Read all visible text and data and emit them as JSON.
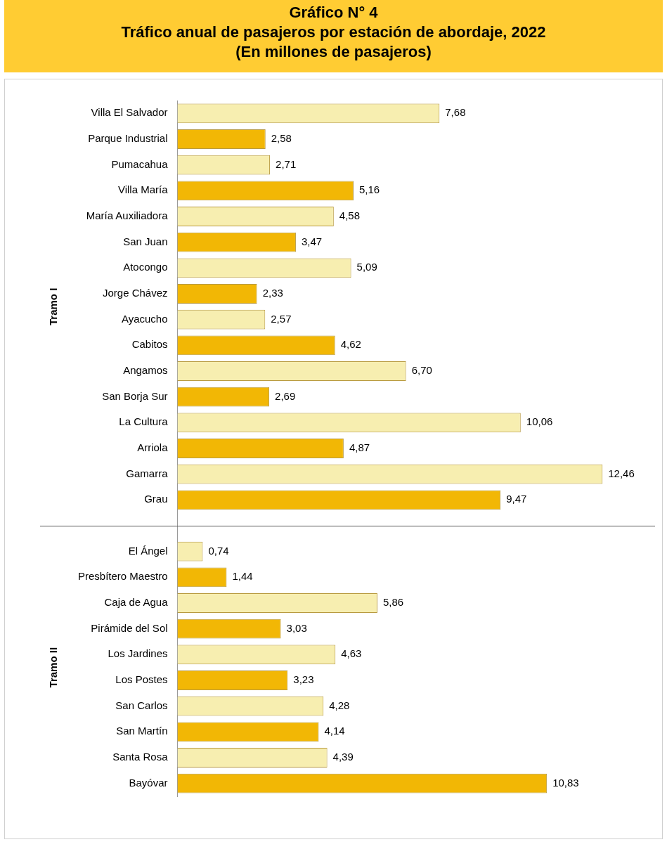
{
  "chart_data": {
    "type": "bar",
    "orientation": "horizontal",
    "title": "Gráfico N° 4",
    "subtitle": "Tráfico anual de pasajeros por estación de abordaje, 2022\n(En millones de pasajeros)",
    "categories": [
      "Villa El Salvador",
      "Parque Industrial",
      "Pumacahua",
      "Villa María",
      "María Auxiliadora",
      "San Juan",
      "Atocongo",
      "Jorge Chávez",
      "Ayacucho",
      "Cabitos",
      "Angamos",
      "San Borja Sur",
      "La Cultura",
      "Arriola",
      "Gamarra",
      "Grau",
      null,
      "El Ángel",
      "Presbítero Maestro",
      "Caja de Agua",
      "Pirámide del Sol",
      "Los Jardines",
      "Los Postes",
      "San Carlos",
      "San Martín",
      "Santa Rosa",
      "Bayóvar"
    ],
    "values": [
      7.68,
      2.58,
      2.71,
      5.16,
      4.58,
      3.47,
      5.09,
      2.33,
      2.57,
      4.62,
      6.7,
      2.69,
      10.06,
      4.87,
      12.46,
      9.47,
      null,
      0.74,
      1.44,
      5.86,
      3.03,
      4.63,
      3.23,
      4.28,
      4.14,
      4.39,
      10.83
    ],
    "value_labels": [
      "7,68",
      "2,58",
      "2,71",
      "5,16",
      "4,58",
      "3,47",
      "5,09",
      "2,33",
      "2,57",
      "4,62",
      "6,70",
      "2,69",
      "10,06",
      "4,87",
      "12,46",
      "9,47",
      null,
      "0,74",
      "1,44",
      "5,86",
      "3,03",
      "4,63",
      "3,23",
      "4,28",
      "4,14",
      "4,39",
      "10,83"
    ],
    "colors": [
      "#f7eeb0",
      "#f2b705",
      "#f7eeb0",
      "#f2b705",
      "#f7eeb0",
      "#f2b705",
      "#f7eeb0",
      "#f2b705",
      "#f7eeb0",
      "#f2b705",
      "#f7eeb0",
      "#f2b705",
      "#f7eeb0",
      "#f2b705",
      "#f7eeb0",
      "#f2b705",
      null,
      "#f7eeb0",
      "#f2b705",
      "#f7eeb0",
      "#f2b705",
      "#f7eeb0",
      "#f2b705",
      "#f7eeb0",
      "#f2b705",
      "#f7eeb0",
      "#f2b705"
    ],
    "annotations": [
      "Tramo I",
      "Tramo II"
    ],
    "legend": false,
    "grid": false
  }
}
